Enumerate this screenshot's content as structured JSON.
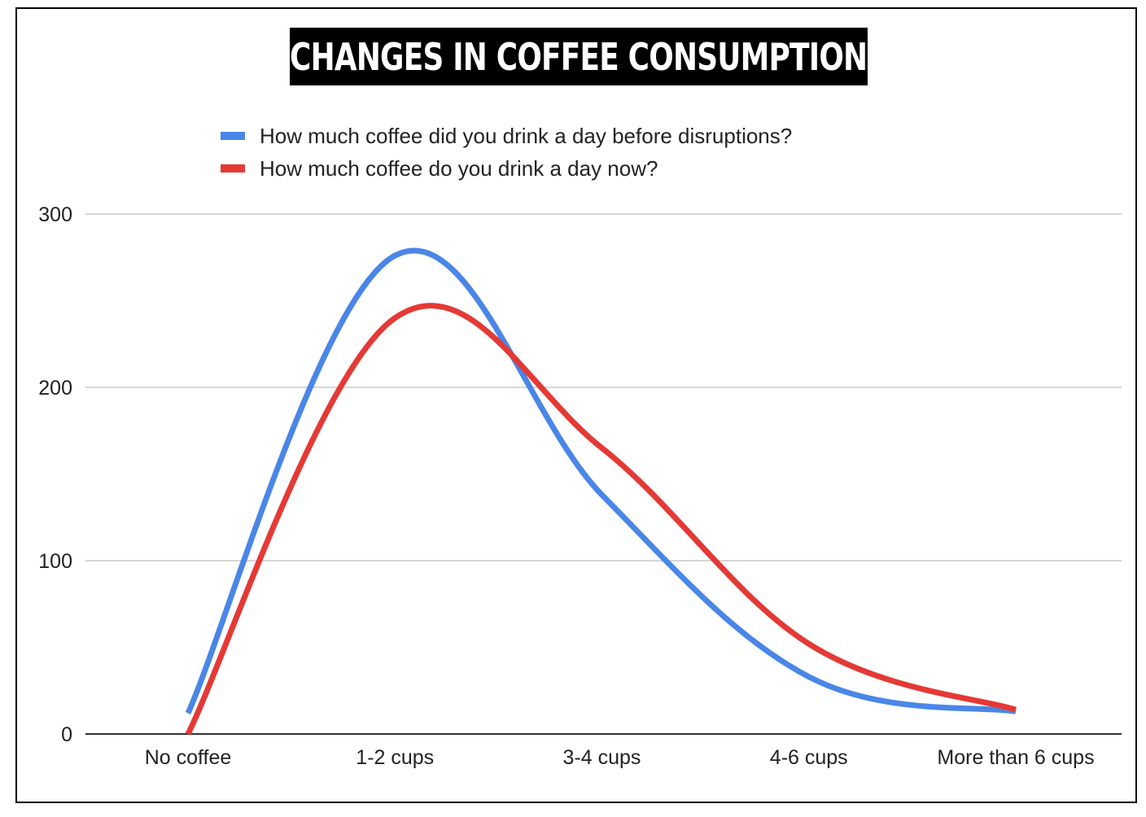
{
  "chart_data": {
    "type": "line",
    "title": "CHANGES IN COFFEE CONSUMPTION",
    "categories": [
      "No coffee",
      "1-2 cups",
      "3-4 cups",
      "4-6 cups",
      "More than 6 cups"
    ],
    "series": [
      {
        "name": "How much coffee did you drink a day before disruptions?",
        "color": "#4a86e8",
        "values": [
          12,
          276,
          138,
          33,
          13
        ]
      },
      {
        "name": "How much coffee do you drink a day now?",
        "color": "#e53935",
        "values": [
          0,
          240,
          165,
          52,
          14
        ]
      }
    ],
    "y_ticks": [
      0,
      100,
      200,
      300
    ],
    "ylim": [
      0,
      300
    ],
    "grid": true,
    "legend_position": "top-left",
    "smooth": true
  }
}
